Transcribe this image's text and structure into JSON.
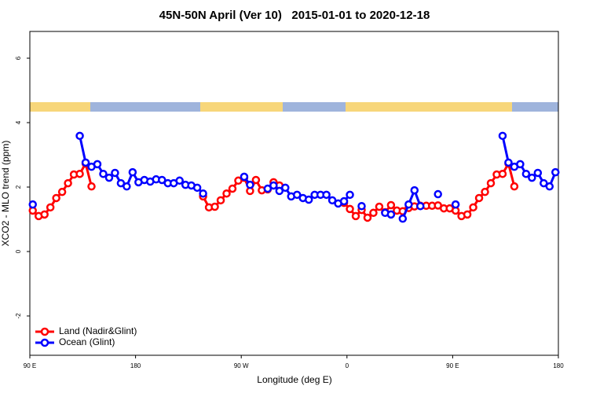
{
  "chart_data": {
    "type": "line",
    "title": "45N-50N April (Ver 10)   2015-01-01 to 2020-12-18",
    "xlabel": "Longitude (deg E)",
    "ylabel": "XCO2 - MLO trend (ppm)",
    "x": [
      92.5,
      97.5,
      102.5,
      107.5,
      112.5,
      117.5,
      122.5,
      127.5,
      132.5,
      137.5,
      142.5,
      147.5,
      152.5,
      157.5,
      162.5,
      167.5,
      172.5,
      177.5,
      182.5,
      187.5,
      192.5,
      197.5,
      202.5,
      207.5,
      212.5,
      217.5,
      222.5,
      227.5,
      232.5,
      237.5,
      242.5,
      247.5,
      252.5,
      257.5,
      262.5,
      267.5,
      272.5,
      277.5,
      282.5,
      287.5,
      292.5,
      297.5,
      302.5,
      307.5,
      312.5,
      317.5,
      322.5,
      327.5,
      332.5,
      337.5,
      342.5,
      347.5,
      352.5,
      357.5,
      362.5,
      367.5,
      372.5,
      377.5,
      382.5,
      387.5,
      392.5,
      397.5,
      402.5,
      407.5,
      412.5,
      417.5,
      422.5,
      427.5,
      432.5,
      437.5,
      442.5,
      447.5,
      452.5,
      457.5,
      462.5,
      467.5,
      472.5,
      477.5,
      482.5,
      487.5,
      492.5,
      497.5,
      502.5,
      507.5,
      512.5,
      517.5,
      522.5,
      527.5,
      532.5,
      537.5
    ],
    "series": [
      {
        "name": "Land (Nadir&Glint)",
        "color": "#ff0000",
        "values": [
          1.27,
          1.1,
          1.15,
          1.37,
          1.66,
          1.85,
          2.12,
          2.39,
          2.41,
          2.73,
          2.02,
          null,
          null,
          null,
          null,
          null,
          null,
          null,
          null,
          null,
          null,
          null,
          null,
          null,
          null,
          null,
          null,
          null,
          null,
          1.71,
          1.37,
          1.39,
          1.59,
          1.8,
          1.95,
          2.2,
          2.29,
          1.88,
          2.22,
          1.9,
          1.93,
          2.15,
          2.05,
          null,
          null,
          null,
          null,
          null,
          null,
          null,
          null,
          null,
          null,
          1.51,
          1.32,
          1.1,
          1.29,
          1.05,
          1.2,
          1.39,
          1.22,
          1.44,
          1.27,
          1.25,
          1.35,
          1.4,
          1.42,
          1.42,
          1.42,
          1.43,
          1.34,
          1.34,
          1.27,
          1.1,
          1.15,
          1.37,
          1.66,
          1.85,
          2.12,
          2.39,
          2.41,
          2.73,
          2.02,
          null,
          null,
          null,
          null,
          null,
          null,
          null
        ]
      },
      {
        "name": "Ocean (Glint)",
        "color": "#0000ff",
        "values": [
          1.46,
          null,
          null,
          null,
          null,
          null,
          null,
          null,
          3.59,
          2.76,
          2.63,
          2.71,
          2.41,
          2.29,
          2.44,
          2.12,
          2.02,
          2.46,
          2.15,
          2.22,
          2.17,
          2.24,
          2.22,
          2.12,
          2.12,
          2.2,
          2.07,
          2.05,
          1.98,
          1.8,
          null,
          null,
          null,
          null,
          null,
          null,
          2.32,
          2.07,
          null,
          null,
          1.95,
          2.05,
          1.88,
          1.98,
          1.71,
          1.76,
          1.66,
          1.61,
          1.76,
          1.76,
          1.76,
          1.59,
          1.49,
          1.56,
          1.76,
          null,
          1.41,
          null,
          null,
          null,
          1.2,
          1.15,
          null,
          1.02,
          1.46,
          1.9,
          1.41,
          null,
          null,
          1.78,
          null,
          null,
          1.46,
          null,
          null,
          null,
          null,
          null,
          null,
          null,
          3.59,
          2.76,
          2.63,
          2.71,
          2.41,
          2.29,
          2.44,
          2.12,
          2.02,
          2.46
        ]
      }
    ],
    "xlim": [
      90,
      540
    ],
    "ylim": [
      -3.22,
      6.83
    ],
    "xticks": [
      {
        "value": 90,
        "label": "90 E"
      },
      180,
      {
        "value": 270,
        "label": "90 W"
      },
      {
        "value": 360,
        "label": "0"
      },
      {
        "value": 450,
        "label": "90 E"
      },
      {
        "value": 540,
        "label": "180"
      }
    ],
    "yticks": [
      -2,
      0,
      2,
      4,
      6
    ],
    "legend": "bottomleft"
  }
}
